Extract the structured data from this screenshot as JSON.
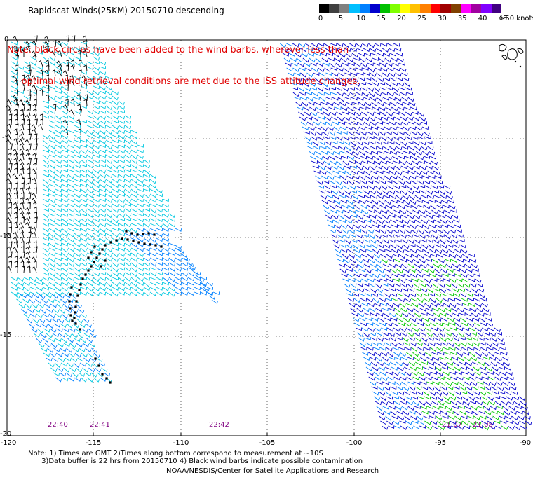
{
  "title": "Rapidscat Winds(25KM) 20150710 descending",
  "note_lines": [
    "Note: black circles have been added to the wind barbs, wherever less than",
    "     optimal wind retrieval conditions are met due to the ISS attitude changes."
  ],
  "legend": {
    "unit": ">50 knots",
    "ticks": [
      "0",
      "5",
      "10",
      "15",
      "20",
      "25",
      "30",
      "35",
      "40",
      "45"
    ],
    "colors": [
      "#000000",
      "#404040",
      "#808080",
      "#00bfff",
      "#0080ff",
      "#0000cd",
      "#00c000",
      "#80ff00",
      "#ffff00",
      "#ffc000",
      "#ff8000",
      "#ff0000",
      "#a00000",
      "#804000",
      "#ff00ff",
      "#a000a0",
      "#8000ff",
      "#400080"
    ]
  },
  "axes": {
    "x_ticks": [
      "-120",
      "-115",
      "-110",
      "-105",
      "-100",
      "-95",
      "-90"
    ],
    "y_ticks": [
      "0",
      "-5",
      "-10",
      "-15",
      "-20"
    ]
  },
  "time_labels": [
    "22:40",
    "22:41",
    "22:42",
    "21:07",
    "21:08"
  ],
  "footer": {
    "line1": "Note: 1) Times are GMT 2)Times along bottom correspond to measurement at ~10S",
    "line2": "      3)Data buffer is 22 hrs from 20150710 4) Black wind barbs indicate possible contamination",
    "line3": "NOAA/NESDIS/Center for Satellite Applications and Research"
  },
  "colors": {
    "barb_cyan": "#00c8e0",
    "barb_light_blue": "#0080ff",
    "barb_dark_blue": "#0000cd",
    "barb_green": "#00c800",
    "barb_black": "#000000",
    "time_label": "#800080",
    "note": "#e00000"
  }
}
